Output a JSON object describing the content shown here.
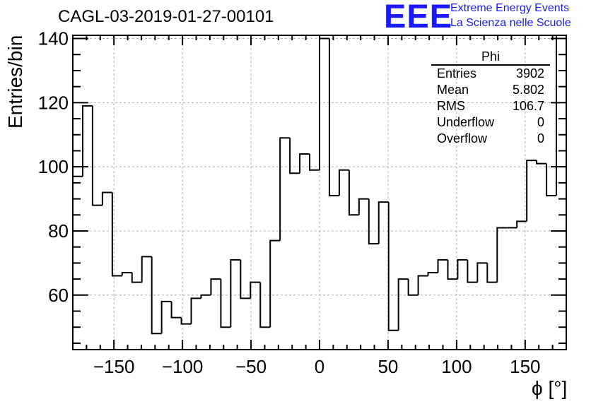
{
  "chart_data": {
    "type": "histogram",
    "title": "CAGL-03-2019-01-27-00101",
    "xlabel": "ϕ [°]",
    "ylabel": "Entries/bin",
    "xlim": [
      -180,
      180
    ],
    "ylim": [
      43,
      141
    ],
    "xticks": [
      -150,
      -100,
      -50,
      0,
      50,
      100,
      150
    ],
    "xtick_labels": [
      "−150",
      "−100",
      "−50",
      "0",
      "50",
      "100",
      "150"
    ],
    "yticks": [
      60,
      80,
      100,
      120,
      140
    ],
    "ytick_labels": [
      "60",
      "80",
      "100",
      "120",
      "140"
    ],
    "grid": true,
    "bin_width": 7.2,
    "values": [
      97,
      119,
      88,
      92,
      66,
      67,
      64,
      72,
      48,
      58,
      53,
      51,
      59,
      60,
      65,
      50,
      71,
      59,
      64,
      50,
      77,
      109,
      98,
      104,
      99,
      140,
      91,
      99,
      85,
      90,
      76,
      89,
      49,
      65,
      60,
      66,
      67,
      71,
      65,
      71,
      64,
      70,
      64,
      81,
      81,
      83,
      102,
      101,
      91,
      141
    ]
  },
  "stats_box": {
    "title": "Phi",
    "rows": [
      {
        "label": "Entries",
        "value": "3902"
      },
      {
        "label": "Mean",
        "value": "5.802"
      },
      {
        "label": "RMS",
        "value": "106.7"
      },
      {
        "label": "Underflow",
        "value": "0"
      },
      {
        "label": "Overflow",
        "value": "0"
      }
    ]
  },
  "logo": {
    "text": "EEE",
    "line1": "Extreme Energy Events",
    "line2": "La Scienza nelle Scuole",
    "color": "#1a1aff"
  },
  "colors": {
    "axis": "#000000",
    "grid": "#b0b0b0",
    "line": "#000000"
  }
}
